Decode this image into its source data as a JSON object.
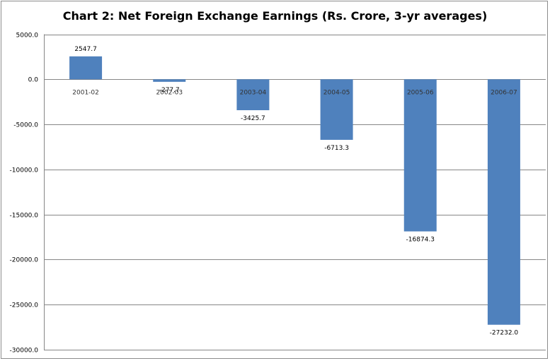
{
  "chart_data": {
    "type": "bar",
    "title": "Chart 2: Net Foreign Exchange Earnings (Rs. Crore, 3-yr averages)",
    "categories": [
      "2001-02",
      "2002-03",
      "2003-04",
      "2004-05",
      "2005-06",
      "2006-07"
    ],
    "values": [
      2547.7,
      -277.7,
      -3425.7,
      -6713.3,
      -16874.3,
      -27232.0
    ],
    "value_labels": [
      "2547.7",
      "-277.7",
      "-3425.7",
      "-6713.3",
      "-16874.3",
      "-27232.0"
    ],
    "y_ticks": [
      5000,
      0,
      -5000,
      -10000,
      -15000,
      -20000,
      -25000,
      -30000
    ],
    "y_tick_labels": [
      "5000.0",
      "0.0",
      "-5000.0",
      "-10000.0",
      "-15000.0",
      "-20000.0",
      "-25000.0",
      "-30000.0"
    ],
    "ylim": [
      -30000,
      5000
    ],
    "grid": true,
    "legend": "none",
    "xlabel": "",
    "ylabel": "",
    "colors": {
      "bar": "#4f81bd",
      "grid": "#868686",
      "axis_text": "#000000",
      "category_text": "#333333"
    }
  }
}
